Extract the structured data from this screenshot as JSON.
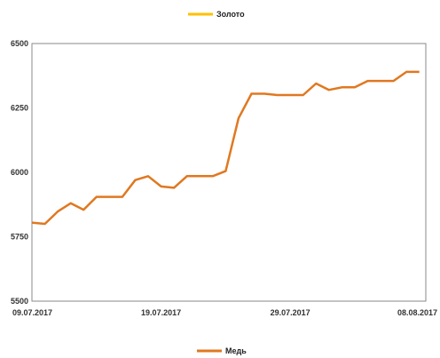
{
  "chart_data": {
    "type": "line",
    "title": "",
    "xlabel": "",
    "ylabel": "",
    "ylim": [
      5500,
      6500
    ],
    "yticks": [
      5500,
      5750,
      6000,
      6250,
      6500
    ],
    "xticks": [
      {
        "day": 0,
        "label": "09.07.2017"
      },
      {
        "day": 10,
        "label": "19.07.2017"
      },
      {
        "day": 20,
        "label": "29.07.2017"
      },
      {
        "day": 30,
        "label": "08.08.2017"
      }
    ],
    "xlim_days": [
      0,
      30.5
    ],
    "grid": false,
    "legend": [
      {
        "name": "Золото",
        "color": "#FFC000",
        "placement": "top"
      },
      {
        "name": "Медь",
        "color": "#E07820",
        "placement": "bottom"
      }
    ],
    "series": [
      {
        "name": "Медь",
        "color": "#E07820",
        "days": [
          0,
          1,
          2,
          3,
          4,
          5,
          6,
          7,
          8,
          9,
          10,
          11,
          12,
          13,
          14,
          15,
          16,
          17,
          18,
          19,
          20,
          21,
          22,
          23,
          24,
          25,
          26,
          27,
          28,
          29,
          30
        ],
        "values": [
          5805,
          5800,
          5848,
          5880,
          5855,
          5905,
          5905,
          5905,
          5970,
          5985,
          5945,
          5940,
          5985,
          5985,
          5985,
          6005,
          6210,
          6305,
          6305,
          6300,
          6300,
          6300,
          6345,
          6320,
          6330,
          6330,
          6355,
          6355,
          6355,
          6390,
          6390
        ]
      }
    ]
  }
}
